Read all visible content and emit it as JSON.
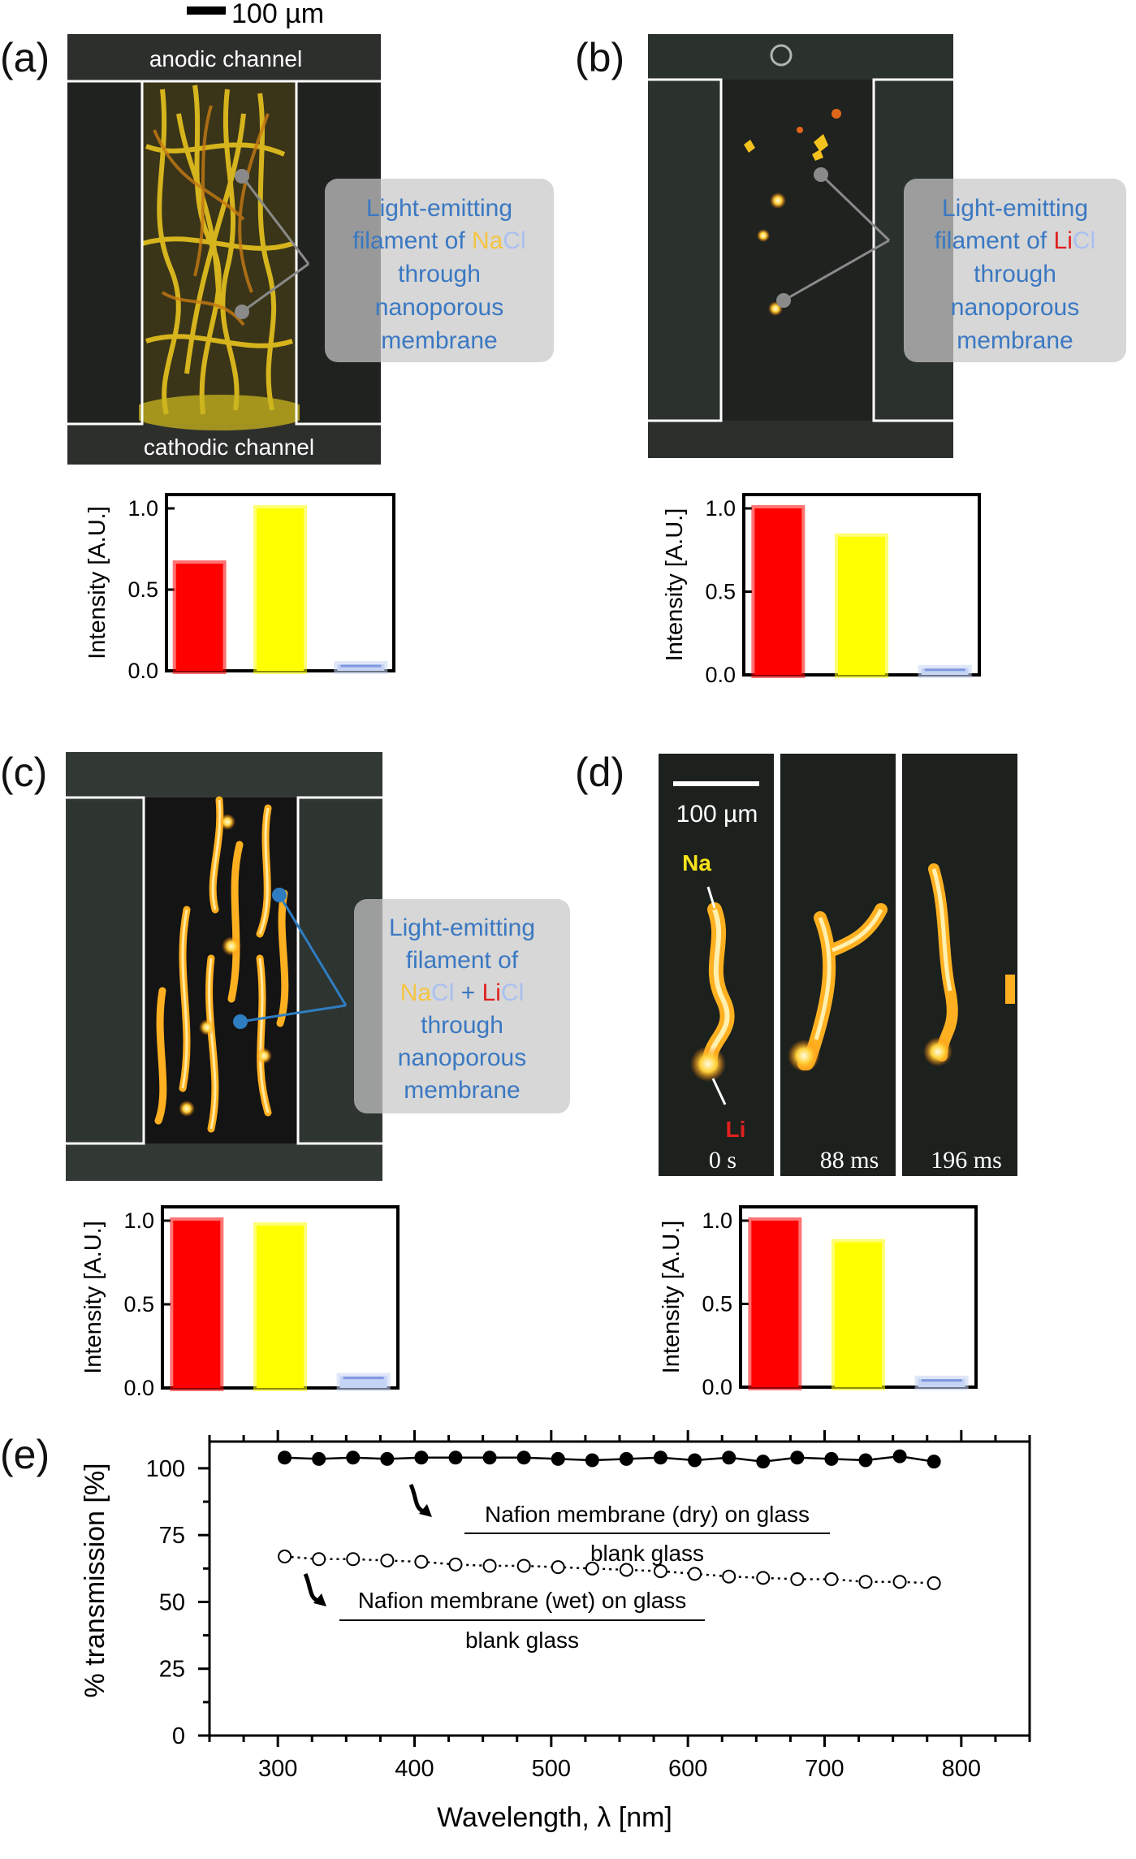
{
  "scale_bar_label": "100 µm",
  "panels": {
    "a": {
      "letter": "(a)",
      "anodic_label": "anodic channel",
      "cathodic_label": "cathodic channel",
      "callout": {
        "line1": "Light-emitting",
        "line2_prefix": "filament of ",
        "na": "Na",
        "cl": "Cl",
        "line3": "through",
        "line4": "nanoporous",
        "line5": "membrane"
      }
    },
    "b": {
      "letter": "(b)",
      "callout": {
        "line1": "Light-emitting",
        "line2_prefix": "filament of ",
        "li": "Li",
        "cl": "Cl",
        "line3": "through",
        "line4": "nanoporous",
        "line5": "membrane"
      }
    },
    "c": {
      "letter": "(c)",
      "callout": {
        "line1": "Light-emitting",
        "line2": "filament of",
        "na": "Na",
        "cl1": "Cl",
        "plus": " + ",
        "li": "Li",
        "cl2": "Cl",
        "line4": "through",
        "line5": "nanoporous",
        "line6": "membrane"
      }
    },
    "d": {
      "letter": "(d)",
      "scale_label": "100 µm",
      "na_label": "Na",
      "li_label": "Li",
      "times": [
        "0 s",
        "88 ms",
        "196 ms"
      ]
    },
    "e": {
      "letter": "(e)"
    }
  },
  "colors": {
    "red": "#ff0000",
    "yellow": "#ffff00",
    "blue": "#9fb5ee",
    "text_blue": "#3a78c2",
    "na_yellow": "#f5c542",
    "li_red": "#e02020",
    "cl_blue": "#a9c0f0"
  },
  "chart_data": [
    {
      "type": "bar",
      "panel": "a",
      "ylabel": "Intensity [A.U.]",
      "ylim": [
        0,
        1.0
      ],
      "yticks": [
        "0.0",
        "0.5",
        "1.0"
      ],
      "values": [
        0.66,
        1.0,
        0.04
      ],
      "colors": [
        "#ff0000",
        "#ffff00",
        "#9fb5ee"
      ]
    },
    {
      "type": "bar",
      "panel": "b",
      "ylabel": "Intensity [A.U.]",
      "ylim": [
        0,
        1.0
      ],
      "yticks": [
        "0.0",
        "0.5",
        "1.0"
      ],
      "values": [
        1.0,
        0.83,
        0.04
      ],
      "colors": [
        "#ff0000",
        "#ffff00",
        "#9fb5ee"
      ]
    },
    {
      "type": "bar",
      "panel": "c",
      "ylabel": "Intensity [A.U.]",
      "ylim": [
        0,
        1.0
      ],
      "yticks": [
        "0.0",
        "0.5",
        "1.0"
      ],
      "values": [
        1.0,
        0.97,
        0.07
      ],
      "colors": [
        "#ff0000",
        "#ffff00",
        "#9fb5ee"
      ]
    },
    {
      "type": "bar",
      "panel": "d",
      "ylabel": "Intensity [A.U.]",
      "ylim": [
        0,
        1.0
      ],
      "yticks": [
        "0.0",
        "0.5",
        "1.0"
      ],
      "values": [
        1.0,
        0.87,
        0.05
      ],
      "colors": [
        "#ff0000",
        "#ffff00",
        "#9fb5ee"
      ]
    },
    {
      "type": "line",
      "panel": "e",
      "xlabel": "Wavelength, λ [nm]",
      "ylabel": "% transmission  [%]",
      "xlim": [
        250,
        850
      ],
      "ylim": [
        0,
        110
      ],
      "xticks": [
        300,
        400,
        500,
        600,
        700,
        800
      ],
      "yticks": [
        0,
        25,
        50,
        75,
        100
      ],
      "series": [
        {
          "name_numerator": "Nafion membrane (dry) on glass",
          "name_denominator": "blank glass",
          "marker": "filled-circle",
          "line": "solid",
          "x": [
            305,
            330,
            355,
            380,
            405,
            430,
            455,
            480,
            505,
            530,
            555,
            580,
            605,
            630,
            655,
            680,
            705,
            730,
            755,
            780
          ],
          "y": [
            104,
            103.5,
            104,
            103.5,
            104,
            104,
            104,
            104,
            103.5,
            103,
            103.5,
            104,
            103,
            104,
            102.5,
            104,
            103.5,
            103,
            104.5,
            102.5
          ]
        },
        {
          "name_numerator": "Nafion membrane (wet) on glass",
          "name_denominator": "blank glass",
          "marker": "open-circle",
          "line": "dotted",
          "x": [
            305,
            330,
            355,
            380,
            405,
            430,
            455,
            480,
            505,
            530,
            555,
            580,
            605,
            630,
            655,
            680,
            705,
            730,
            755,
            780
          ],
          "y": [
            67,
            66,
            66,
            65.5,
            65,
            64,
            63.5,
            63.5,
            63,
            62.5,
            62,
            61.5,
            60.5,
            59.5,
            59,
            58.5,
            58.5,
            57.5,
            57.5,
            57
          ]
        }
      ]
    }
  ]
}
